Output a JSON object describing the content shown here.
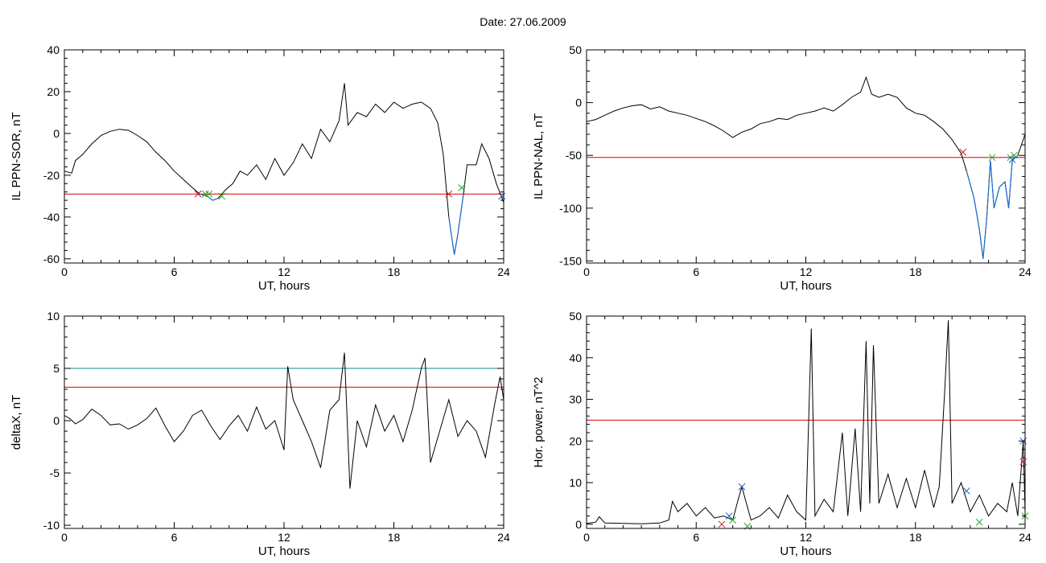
{
  "header": {
    "title": "Date:  27.06.2009"
  },
  "colors": {
    "axis": "#000000",
    "threshold_red": "#dd0000",
    "threshold_teal": "#008b8b",
    "disturbed": "#1f6fd0",
    "marker_green": "#22aa22",
    "marker_blue": "#2060d0",
    "marker_red": "#cc2222"
  },
  "chart_data": [
    {
      "type": "line",
      "title": "",
      "xlabel": "UT, hours",
      "ylabel": "IL PPN-SOR, nT",
      "xlim": [
        0,
        24
      ],
      "ylim": [
        -62,
        40
      ],
      "xticks": [
        0,
        6,
        12,
        18,
        24
      ],
      "yticks": [
        -60,
        -40,
        -20,
        0,
        20,
        40
      ],
      "grid": false,
      "thresholds": [
        {
          "y": -29,
          "color": "red"
        }
      ],
      "series": [
        {
          "values_xy": [
            [
              0,
              -18
            ],
            [
              0.4,
              -19
            ],
            [
              0.6,
              -13
            ],
            [
              1,
              -10
            ],
            [
              1.5,
              -5
            ],
            [
              2,
              -1
            ],
            [
              2.5,
              1
            ],
            [
              3,
              2
            ],
            [
              3.5,
              1.5
            ],
            [
              4,
              -1
            ],
            [
              4.5,
              -4
            ],
            [
              5,
              -9
            ],
            [
              5.5,
              -13
            ],
            [
              6,
              -18
            ],
            [
              6.5,
              -22
            ],
            [
              7,
              -26
            ],
            [
              7.4,
              -29
            ],
            [
              7.8,
              -30
            ],
            [
              8.1,
              -32
            ],
            [
              8.4,
              -31
            ],
            [
              8.8,
              -27
            ],
            [
              9.2,
              -24
            ],
            [
              9.6,
              -18
            ],
            [
              10,
              -20
            ],
            [
              10.5,
              -15
            ],
            [
              11,
              -22
            ],
            [
              11.5,
              -12
            ],
            [
              12,
              -20
            ],
            [
              12.5,
              -14
            ],
            [
              13,
              -5
            ],
            [
              13.5,
              -12
            ],
            [
              14,
              2
            ],
            [
              14.5,
              -4
            ],
            [
              15,
              6
            ],
            [
              15.3,
              24
            ],
            [
              15.5,
              4
            ],
            [
              16,
              10
            ],
            [
              16.5,
              8
            ],
            [
              17,
              14
            ],
            [
              17.5,
              10
            ],
            [
              18,
              15
            ],
            [
              18.5,
              12
            ],
            [
              19,
              14
            ],
            [
              19.5,
              15
            ],
            [
              20,
              12
            ],
            [
              20.4,
              5
            ],
            [
              20.7,
              -10
            ],
            [
              21,
              -40
            ],
            [
              21.3,
              -58
            ],
            [
              21.5,
              -48
            ],
            [
              21.8,
              -29
            ],
            [
              22,
              -15
            ],
            [
              22.5,
              -15
            ],
            [
              22.8,
              -5
            ],
            [
              23.2,
              -12
            ],
            [
              23.6,
              -24
            ],
            [
              24,
              -33
            ]
          ]
        }
      ],
      "disturbed_interval_hours": [
        [
          7.3,
          8.7
        ],
        [
          20.9,
          21.8
        ],
        [
          23.8,
          24
        ]
      ],
      "markers": [
        {
          "x": 7.3,
          "y": -29,
          "color": "red"
        },
        {
          "x": 7.7,
          "y": -29,
          "color": "green"
        },
        {
          "x": 7.9,
          "y": -29,
          "color": "green"
        },
        {
          "x": 8.6,
          "y": -30,
          "color": "green"
        },
        {
          "x": 21.0,
          "y": -29,
          "color": "red"
        },
        {
          "x": 21.7,
          "y": -26,
          "color": "green"
        },
        {
          "x": 23.9,
          "y": -30,
          "color": "blue"
        }
      ]
    },
    {
      "type": "line",
      "title": "",
      "xlabel": "UT, hours",
      "ylabel": "IL PPN-NAL, nT",
      "xlim": [
        0,
        24
      ],
      "ylim": [
        -152,
        50
      ],
      "xticks": [
        0,
        6,
        12,
        18,
        24
      ],
      "yticks": [
        -150,
        -100,
        -50,
        0,
        50
      ],
      "grid": false,
      "thresholds": [
        {
          "y": -52,
          "color": "red"
        }
      ],
      "series": [
        {
          "values_xy": [
            [
              0,
              -18
            ],
            [
              0.5,
              -16
            ],
            [
              1,
              -12
            ],
            [
              1.5,
              -8
            ],
            [
              2,
              -5
            ],
            [
              2.5,
              -3
            ],
            [
              3,
              -2
            ],
            [
              3.5,
              -6
            ],
            [
              4,
              -4
            ],
            [
              4.5,
              -8
            ],
            [
              5,
              -10
            ],
            [
              5.5,
              -12
            ],
            [
              6,
              -15
            ],
            [
              6.5,
              -18
            ],
            [
              7,
              -22
            ],
            [
              7.5,
              -27
            ],
            [
              8,
              -33
            ],
            [
              8.5,
              -28
            ],
            [
              9,
              -25
            ],
            [
              9.5,
              -20
            ],
            [
              10,
              -18
            ],
            [
              10.5,
              -15
            ],
            [
              11,
              -16
            ],
            [
              11.5,
              -12
            ],
            [
              12,
              -10
            ],
            [
              12.5,
              -8
            ],
            [
              13,
              -5
            ],
            [
              13.5,
              -8
            ],
            [
              14,
              -2
            ],
            [
              14.5,
              5
            ],
            [
              15,
              10
            ],
            [
              15.3,
              24
            ],
            [
              15.6,
              8
            ],
            [
              16,
              5
            ],
            [
              16.5,
              8
            ],
            [
              17,
              5
            ],
            [
              17.5,
              -5
            ],
            [
              18,
              -10
            ],
            [
              18.5,
              -12
            ],
            [
              19,
              -18
            ],
            [
              19.5,
              -25
            ],
            [
              20,
              -35
            ],
            [
              20.5,
              -48
            ],
            [
              20.8,
              -65
            ],
            [
              21.2,
              -90
            ],
            [
              21.5,
              -120
            ],
            [
              21.7,
              -148
            ],
            [
              21.9,
              -110
            ],
            [
              22.1,
              -55
            ],
            [
              22.3,
              -100
            ],
            [
              22.6,
              -80
            ],
            [
              22.9,
              -75
            ],
            [
              23.1,
              -100
            ],
            [
              23.3,
              -55
            ],
            [
              23.6,
              -50
            ],
            [
              24,
              -30
            ]
          ]
        }
      ],
      "disturbed_interval_hours": [
        [
          20.6,
          23.6
        ]
      ],
      "markers": [
        {
          "x": 20.6,
          "y": -47,
          "color": "red"
        },
        {
          "x": 22.2,
          "y": -52,
          "color": "green"
        },
        {
          "x": 23.2,
          "y": -52,
          "color": "green"
        },
        {
          "x": 23.4,
          "y": -50,
          "color": "green"
        },
        {
          "x": 23.3,
          "y": -54,
          "color": "blue"
        }
      ]
    },
    {
      "type": "line",
      "title": "",
      "xlabel": "UT, hours",
      "ylabel": "deltaX, nT",
      "xlim": [
        0,
        24
      ],
      "ylim": [
        -10.3,
        10
      ],
      "xticks": [
        0,
        6,
        12,
        18,
        24
      ],
      "yticks": [
        -10,
        -5,
        0,
        5,
        10
      ],
      "grid": false,
      "thresholds": [
        {
          "y": 5,
          "color": "teal"
        },
        {
          "y": 3.2,
          "color": "red"
        }
      ],
      "series": [
        {
          "values_xy": [
            [
              0,
              0.5
            ],
            [
              0.3,
              0.2
            ],
            [
              0.6,
              -0.3
            ],
            [
              1,
              0.1
            ],
            [
              1.5,
              1.1
            ],
            [
              2,
              0.5
            ],
            [
              2.5,
              -0.4
            ],
            [
              3,
              -0.3
            ],
            [
              3.5,
              -0.8
            ],
            [
              4,
              -0.4
            ],
            [
              4.5,
              0.2
            ],
            [
              5,
              1.2
            ],
            [
              5.5,
              -0.5
            ],
            [
              6,
              -2
            ],
            [
              6.5,
              -1
            ],
            [
              7,
              0.5
            ],
            [
              7.5,
              1
            ],
            [
              8,
              -0.5
            ],
            [
              8.5,
              -1.8
            ],
            [
              9,
              -0.5
            ],
            [
              9.5,
              0.5
            ],
            [
              10,
              -1
            ],
            [
              10.5,
              1.3
            ],
            [
              11,
              -0.8
            ],
            [
              11.5,
              0
            ],
            [
              12,
              -2.8
            ],
            [
              12.2,
              5.2
            ],
            [
              12.5,
              2
            ],
            [
              13,
              0
            ],
            [
              13.5,
              -2
            ],
            [
              14,
              -4.5
            ],
            [
              14.5,
              1
            ],
            [
              15,
              2
            ],
            [
              15.3,
              6.5
            ],
            [
              15.6,
              -6.5
            ],
            [
              16,
              0
            ],
            [
              16.5,
              -2.5
            ],
            [
              17,
              1.5
            ],
            [
              17.5,
              -1
            ],
            [
              18,
              0.5
            ],
            [
              18.5,
              -2
            ],
            [
              19,
              1
            ],
            [
              19.5,
              5
            ],
            [
              19.7,
              6
            ],
            [
              20,
              -4
            ],
            [
              20.5,
              -1
            ],
            [
              21,
              2
            ],
            [
              21.5,
              -1.5
            ],
            [
              22,
              0
            ],
            [
              22.5,
              -1
            ],
            [
              23,
              -3.5
            ],
            [
              23.5,
              1.5
            ],
            [
              23.8,
              4.2
            ],
            [
              24,
              2
            ]
          ]
        }
      ]
    },
    {
      "type": "line",
      "title": "",
      "xlabel": "UT, hours",
      "ylabel": "Hor. power, nT^2",
      "xlim": [
        0,
        24
      ],
      "ylim": [
        -1,
        50
      ],
      "xticks": [
        0,
        6,
        12,
        18,
        24
      ],
      "yticks": [
        0,
        10,
        20,
        30,
        40,
        50
      ],
      "grid": false,
      "thresholds": [
        {
          "y": 25,
          "color": "red"
        }
      ],
      "series": [
        {
          "values_xy": [
            [
              0,
              0.2
            ],
            [
              0.5,
              0.5
            ],
            [
              0.7,
              1.8
            ],
            [
              1,
              0.3
            ],
            [
              2,
              0.2
            ],
            [
              3,
              0.1
            ],
            [
              4,
              0.3
            ],
            [
              4.5,
              1
            ],
            [
              4.7,
              5.5
            ],
            [
              5,
              3
            ],
            [
              5.5,
              5
            ],
            [
              6,
              2
            ],
            [
              6.5,
              4
            ],
            [
              7,
              1.5
            ],
            [
              7.5,
              2
            ],
            [
              8,
              1
            ],
            [
              8.3,
              6
            ],
            [
              8.5,
              9
            ],
            [
              9,
              1
            ],
            [
              9.5,
              2
            ],
            [
              10,
              4
            ],
            [
              10.5,
              1.5
            ],
            [
              11,
              7
            ],
            [
              11.5,
              3
            ],
            [
              12,
              1
            ],
            [
              12.3,
              47
            ],
            [
              12.5,
              2
            ],
            [
              13,
              6
            ],
            [
              13.5,
              3
            ],
            [
              14,
              22
            ],
            [
              14.3,
              2
            ],
            [
              14.7,
              23
            ],
            [
              15,
              3
            ],
            [
              15.3,
              44
            ],
            [
              15.5,
              5
            ],
            [
              15.7,
              43
            ],
            [
              16,
              5
            ],
            [
              16.5,
              12
            ],
            [
              17,
              4
            ],
            [
              17.5,
              11
            ],
            [
              18,
              4
            ],
            [
              18.5,
              13
            ],
            [
              19,
              4
            ],
            [
              19.3,
              9
            ],
            [
              19.6,
              32
            ],
            [
              19.8,
              49
            ],
            [
              20,
              5
            ],
            [
              20.5,
              10
            ],
            [
              21,
              3
            ],
            [
              21.5,
              7
            ],
            [
              22,
              2
            ],
            [
              22.5,
              5
            ],
            [
              23,
              3
            ],
            [
              23.3,
              10
            ],
            [
              23.6,
              2
            ],
            [
              23.9,
              20
            ],
            [
              24,
              3
            ]
          ]
        }
      ],
      "markers": [
        {
          "x": 7.4,
          "y": 0,
          "color": "red"
        },
        {
          "x": 7.8,
          "y": 2,
          "color": "blue"
        },
        {
          "x": 8.0,
          "y": 1,
          "color": "green"
        },
        {
          "x": 8.5,
          "y": 9,
          "color": "blue"
        },
        {
          "x": 8.8,
          "y": -0.5,
          "color": "green"
        },
        {
          "x": 20.8,
          "y": 8,
          "color": "blue"
        },
        {
          "x": 21.5,
          "y": 0.5,
          "color": "green"
        },
        {
          "x": 23.9,
          "y": 20,
          "color": "blue"
        },
        {
          "x": 23.9,
          "y": 15,
          "color": "red"
        },
        {
          "x": 24.0,
          "y": 2,
          "color": "green"
        }
      ]
    }
  ]
}
